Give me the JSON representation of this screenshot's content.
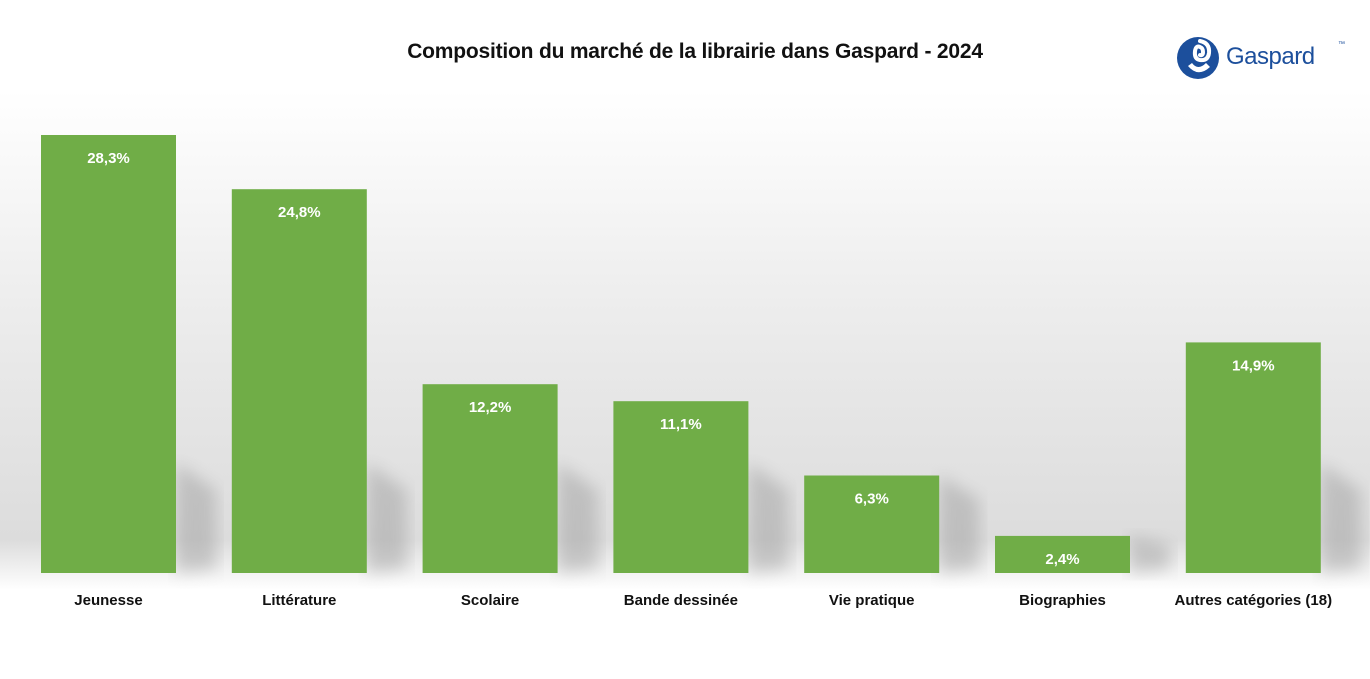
{
  "chart_data": {
    "type": "bar",
    "title": "Composition du marché de la librairie dans Gaspard - 2024",
    "categories": [
      "Jeunesse",
      "Littérature",
      "Scolaire",
      "Bande dessinée",
      "Vie pratique",
      "Biographies",
      "Autres catégories (18)"
    ],
    "values": [
      28.3,
      24.8,
      12.2,
      11.1,
      6.3,
      2.4,
      14.9
    ],
    "data_labels": [
      "28,3%",
      "24,8%",
      "12,2%",
      "11,1%",
      "6,3%",
      "2,4%",
      "14,9%"
    ],
    "unit": "%",
    "xlabel": "",
    "ylabel": "",
    "ylim": [
      0,
      28.3
    ],
    "grid": false,
    "legend": "none",
    "colors": {
      "bar": "#70ad47",
      "data_label": "#ffffff",
      "category_label": "#111111",
      "title": "#111111"
    }
  },
  "logo": {
    "text": "Gaspard",
    "tm": "™",
    "color": "#1c4f9c"
  }
}
